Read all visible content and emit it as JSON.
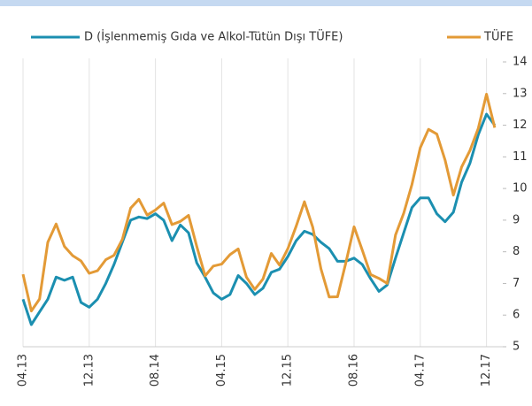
{
  "chart_data": {
    "type": "line",
    "categories": [
      "04.13",
      null,
      null,
      null,
      null,
      null,
      null,
      null,
      "12.13",
      null,
      null,
      null,
      null,
      null,
      null,
      null,
      "08.14",
      null,
      null,
      null,
      null,
      null,
      null,
      null,
      "04.15",
      null,
      null,
      null,
      null,
      null,
      null,
      null,
      "12.15",
      null,
      null,
      null,
      null,
      null,
      null,
      null,
      "08.16",
      null,
      null,
      null,
      null,
      null,
      null,
      null,
      "04.17",
      null,
      null,
      null,
      null,
      null,
      null,
      null,
      "12.17",
      null
    ],
    "series": [
      {
        "name": "D (İşlenmemiş Gıda ve Alkol-Tütün Dışı TÜFE)",
        "color": "#1b8fb0",
        "values": [
          6.5,
          5.7,
          6.1,
          6.5,
          7.2,
          7.1,
          7.2,
          6.4,
          6.25,
          6.5,
          7.0,
          7.6,
          8.3,
          9.0,
          9.1,
          9.05,
          9.2,
          9.0,
          8.35,
          8.85,
          8.6,
          7.65,
          7.2,
          6.7,
          6.5,
          6.65,
          7.25,
          7.0,
          6.65,
          6.85,
          7.35,
          7.45,
          7.85,
          8.35,
          8.65,
          8.55,
          8.3,
          8.1,
          7.7,
          7.7,
          7.8,
          7.6,
          7.15,
          6.75,
          6.95,
          7.8,
          8.6,
          9.4,
          9.7,
          9.7,
          9.2,
          8.95,
          9.25,
          10.2,
          10.8,
          11.7,
          12.35,
          12.0
        ]
      },
      {
        "name": "TÜFE",
        "color": "#e39a36",
        "values": [
          7.29,
          6.13,
          6.51,
          8.3,
          8.88,
          8.17,
          7.88,
          7.71,
          7.32,
          7.4,
          7.75,
          7.89,
          8.39,
          9.38,
          9.66,
          9.16,
          9.32,
          9.54,
          8.86,
          8.96,
          9.15,
          8.17,
          7.24,
          7.55,
          7.61,
          7.91,
          8.09,
          7.2,
          6.81,
          7.14,
          7.95,
          7.58,
          8.1,
          8.81,
          9.58,
          8.78,
          7.46,
          6.57,
          6.58,
          7.64,
          8.79,
          8.05,
          7.28,
          7.16,
          7.0,
          8.53,
          9.22,
          10.13,
          11.29,
          11.87,
          11.72,
          10.9,
          9.79,
          10.68,
          11.2,
          11.9,
          12.98,
          11.92
        ]
      }
    ],
    "ylim": [
      5,
      14
    ],
    "yticks": [
      5,
      6,
      7,
      8,
      9,
      10,
      11,
      12,
      13,
      14
    ],
    "grid": true
  }
}
